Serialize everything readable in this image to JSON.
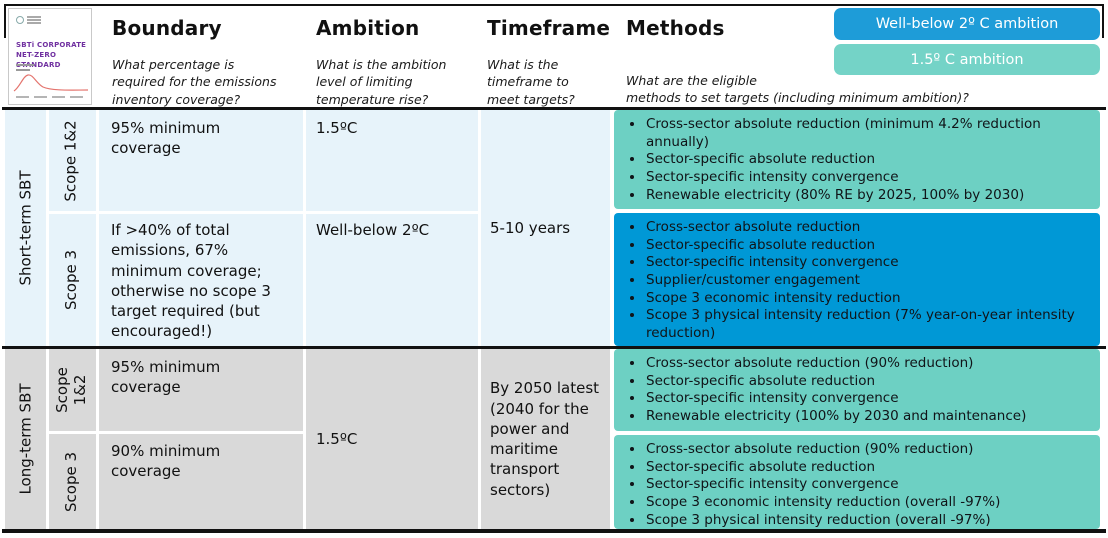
{
  "cover": {
    "title": "SBTi CORPORATE\nNET-ZERO STANDARD"
  },
  "header": {
    "boundary": {
      "title": "Boundary",
      "question": "What percentage is\nrequired for the emissions\ninventory coverage?"
    },
    "ambition": {
      "title": "Ambition",
      "question": "What is the ambition\nlevel of limiting\ntemperature rise?"
    },
    "timeframe": {
      "title": "Timeframe",
      "question": "What is the\ntimeframe to\nmeet targets?"
    },
    "methods": {
      "title": "Methods",
      "question": "What are the eligible\nmethods to set targets (including minimum ambition)?"
    }
  },
  "legend": {
    "well_below_2c": {
      "label": "Well-below 2º C ambition",
      "color": "#1E9CD8"
    },
    "one_point_five_c": {
      "label": "1.5º C ambition",
      "color": "#74D3C7"
    }
  },
  "colors": {
    "short_term_bg": "#E7F3FA",
    "long_term_bg": "#D9D9D9",
    "teal_box": "#6DD0C3",
    "blue_box": "#0098D6"
  },
  "sections": [
    {
      "label": "Short-term SBT",
      "timeframe": "5-10 years",
      "rows": [
        {
          "scope": "Scope 1&2",
          "boundary": "95% minimum coverage",
          "ambition": "1.5ºC",
          "methods": [
            "Cross-sector absolute reduction (minimum 4.2% reduction annually)",
            "Sector-specific absolute reduction",
            "Sector-specific intensity convergence",
            "Renewable electricity (80% RE by 2025, 100% by 2030)"
          ]
        },
        {
          "scope": "Scope 3",
          "boundary": "If >40% of total emissions, 67% minimum coverage; otherwise no scope 3 target required (but encouraged!)",
          "ambition": "Well-below 2ºC",
          "methods": [
            "Cross-sector absolute reduction",
            "Sector-specific absolute reduction",
            "Sector-specific intensity convergence",
            "Supplier/customer engagement",
            "Scope 3 economic intensity reduction",
            "Scope 3 physical intensity reduction (7% year-on-year intensity reduction)"
          ]
        }
      ]
    },
    {
      "label": "Long-term SBT",
      "ambition": "1.5ºC",
      "timeframe": "By 2050 latest (2040 for the power and maritime transport sectors)",
      "rows": [
        {
          "scope": "Scope 1&2",
          "boundary": "95% minimum coverage",
          "methods": [
            "Cross-sector absolute reduction (90% reduction)",
            "Sector-specific absolute reduction",
            "Sector-specific intensity convergence",
            "Renewable electricity (100% by 2030 and maintenance)"
          ]
        },
        {
          "scope": "Scope 3",
          "boundary": "90% minimum coverage",
          "methods": [
            "Cross-sector absolute reduction (90% reduction)",
            "Sector-specific absolute reduction",
            "Sector-specific intensity convergence",
            "Scope 3 economic intensity reduction (overall -97%)",
            "Scope 3 physical intensity reduction (overall -97%)"
          ]
        }
      ]
    }
  ]
}
